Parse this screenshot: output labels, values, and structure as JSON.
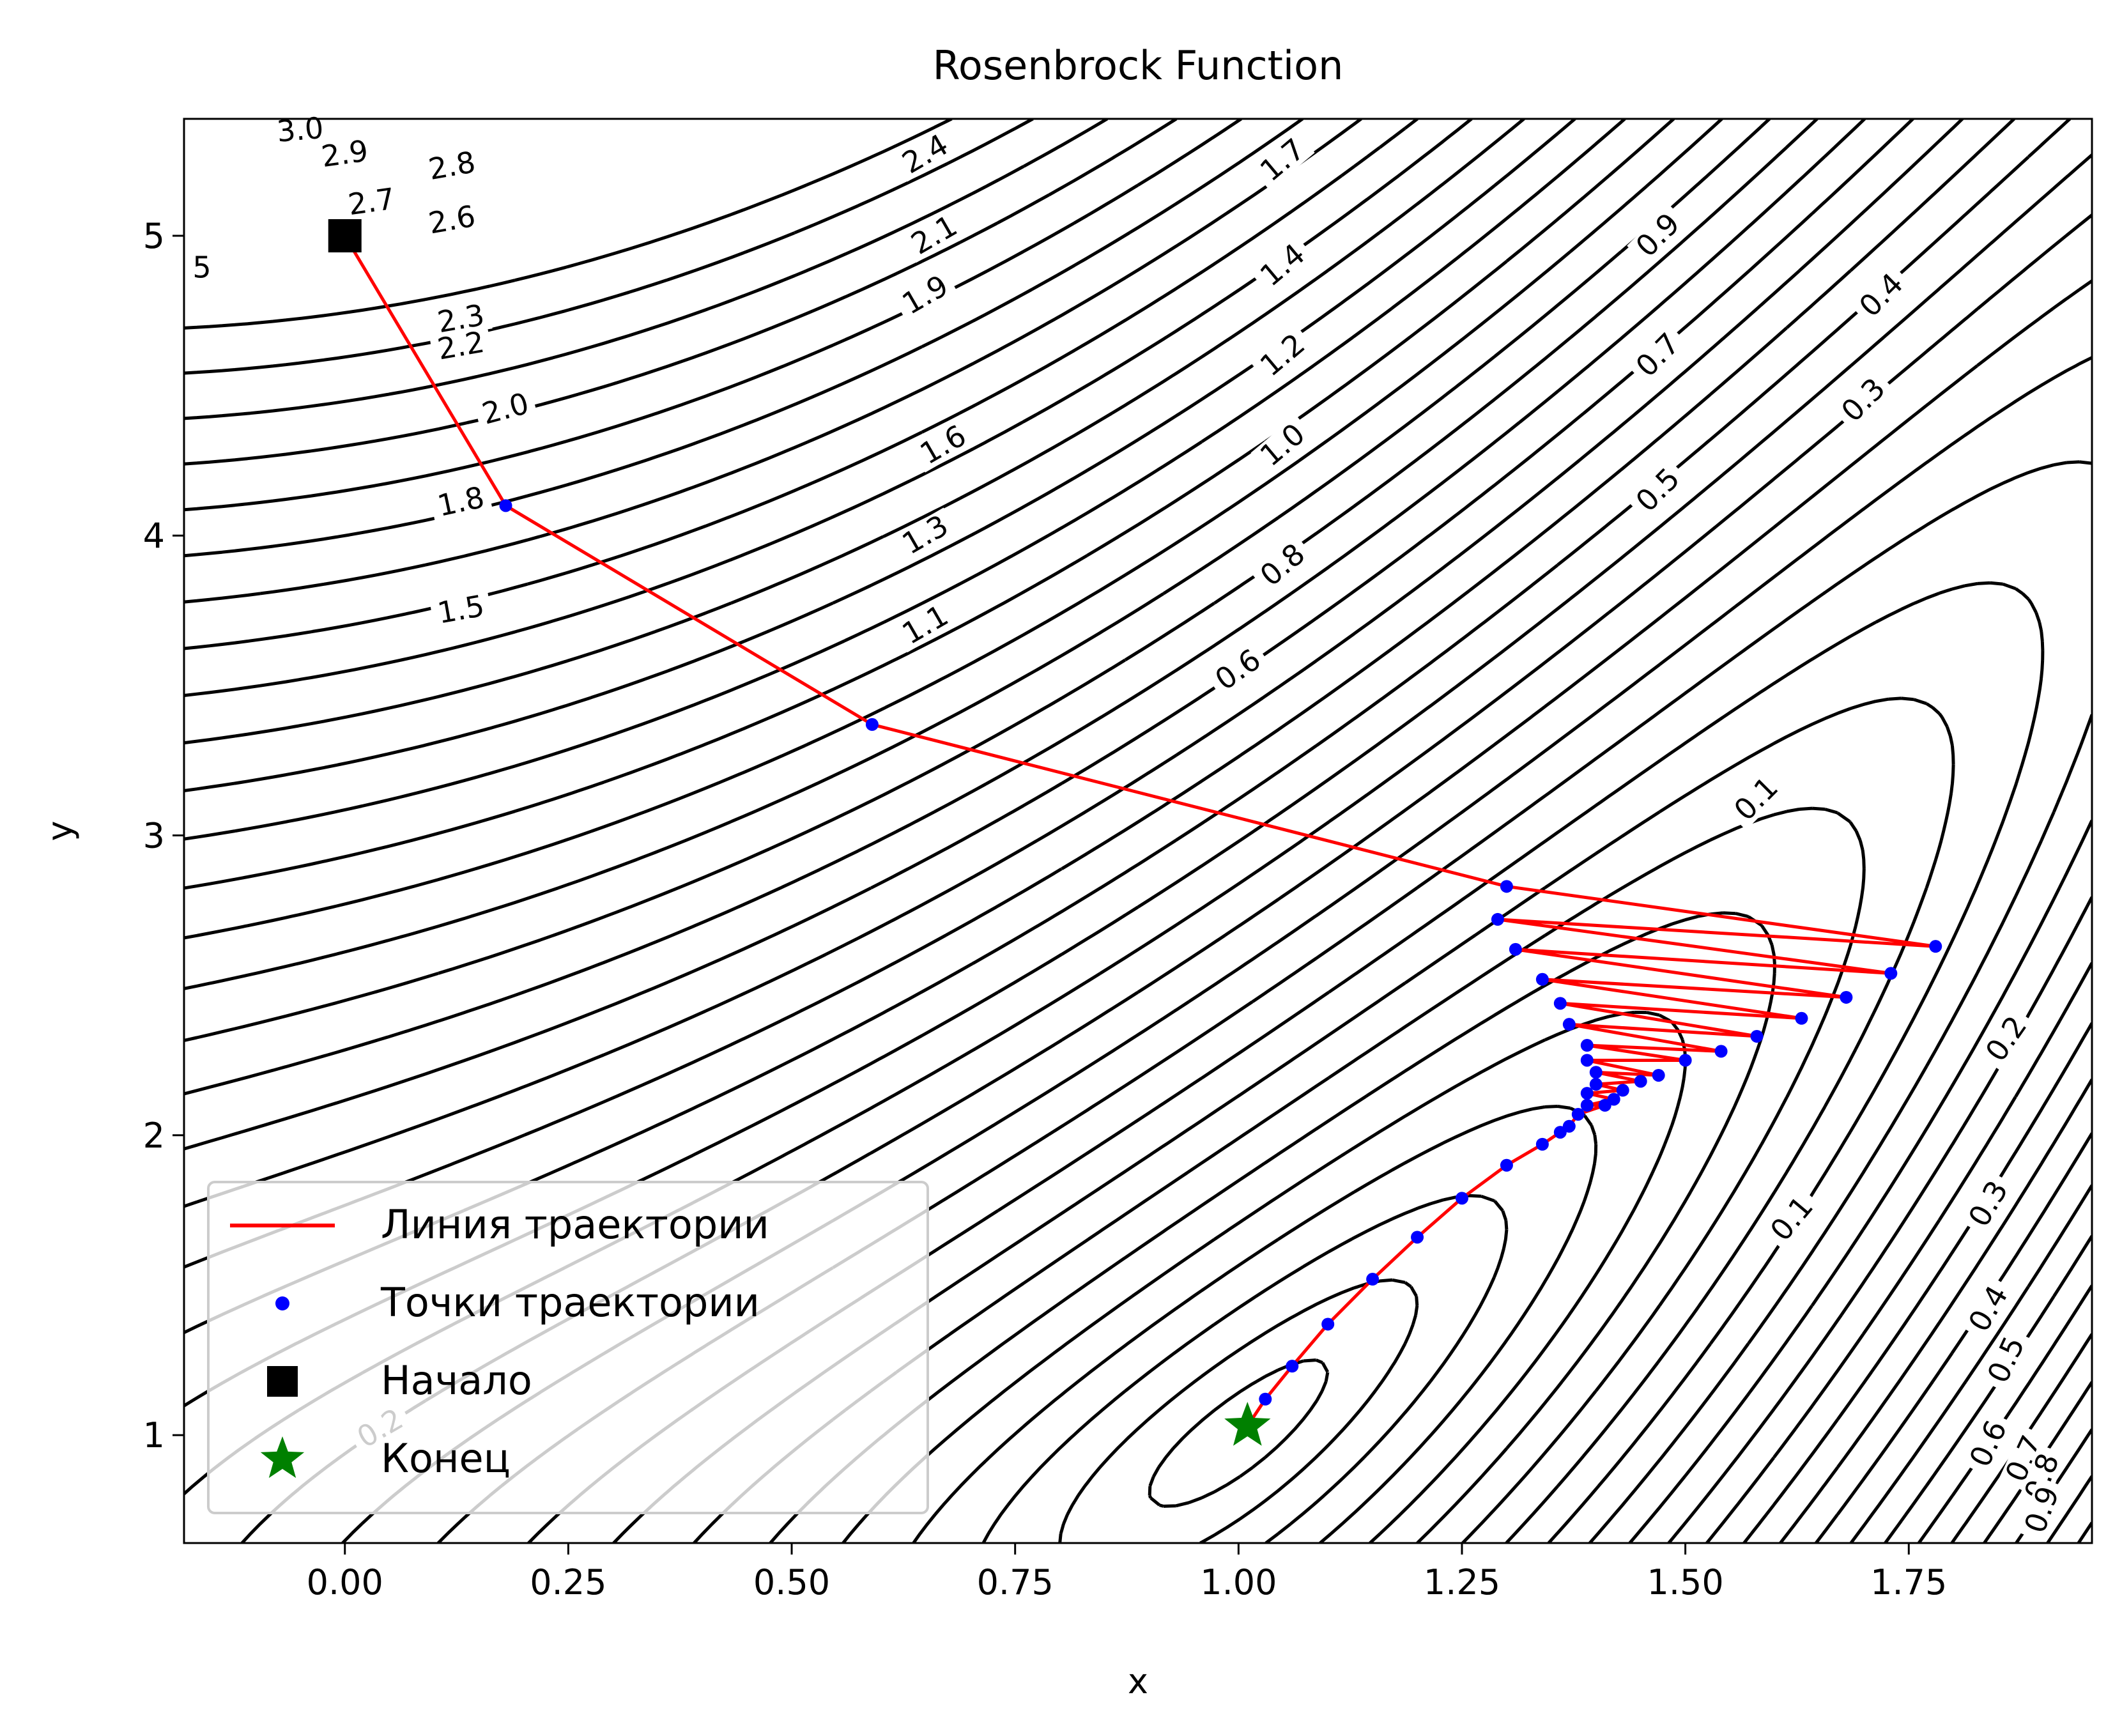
{
  "chart_data": {
    "type": "contour",
    "title": "Rosenbrock Function",
    "xlabel": "x",
    "ylabel": "y",
    "xlim": [
      -0.18,
      1.955
    ],
    "ylim": [
      0.64,
      5.39
    ],
    "x_ticks": [
      0.0,
      0.25,
      0.5,
      0.75,
      1.0,
      1.25,
      1.5,
      1.75
    ],
    "x_tick_labels": [
      "0.00",
      "0.25",
      "0.50",
      "0.75",
      "1.00",
      "1.25",
      "1.50",
      "1.75"
    ],
    "y_ticks": [
      1,
      2,
      3,
      4,
      5
    ],
    "y_tick_labels": [
      "1",
      "2",
      "3",
      "4",
      "5"
    ],
    "grid": false,
    "legend_position": "lower-left",
    "legend": [
      {
        "label": "Линия траектории",
        "marker": "line",
        "color": "#ff0000"
      },
      {
        "label": "Точки траектории",
        "marker": "dot",
        "color": "#0000ff"
      },
      {
        "label": "Начало",
        "marker": "square",
        "color": "#000000"
      },
      {
        "label": "Конец",
        "marker": "star",
        "color": "#008000"
      }
    ],
    "contour_labels": [
      {
        "text": "3.0",
        "x": -0.05,
        "y": 5.35,
        "angle": -5
      },
      {
        "text": "2.9",
        "x": 0.0,
        "y": 5.27,
        "angle": -8
      },
      {
        "text": "2.8",
        "x": 0.12,
        "y": 5.23,
        "angle": -10
      },
      {
        "text": "2.7",
        "x": 0.03,
        "y": 5.11,
        "angle": -8
      },
      {
        "text": "2.6",
        "x": 0.12,
        "y": 5.05,
        "angle": -10
      },
      {
        "text": "5",
        "x": -0.16,
        "y": 4.89,
        "angle": 0
      },
      {
        "text": "2.4",
        "x": 0.65,
        "y": 5.27,
        "angle": -30
      },
      {
        "text": "2.1",
        "x": 0.66,
        "y": 5.0,
        "angle": -30
      },
      {
        "text": "1.9",
        "x": 0.65,
        "y": 4.8,
        "angle": -30
      },
      {
        "text": "1.7",
        "x": 1.05,
        "y": 5.25,
        "angle": -40
      },
      {
        "text": "1.4",
        "x": 1.05,
        "y": 4.9,
        "angle": -40
      },
      {
        "text": "1.2",
        "x": 1.05,
        "y": 4.6,
        "angle": -40
      },
      {
        "text": "1.0",
        "x": 1.05,
        "y": 4.3,
        "angle": -40
      },
      {
        "text": "0.8",
        "x": 1.05,
        "y": 3.9,
        "angle": -40
      },
      {
        "text": "0.6",
        "x": 1.0,
        "y": 3.55,
        "angle": -35
      },
      {
        "text": "0.9",
        "x": 1.47,
        "y": 5.0,
        "angle": -45
      },
      {
        "text": "0.7",
        "x": 1.47,
        "y": 4.6,
        "angle": -45
      },
      {
        "text": "0.5",
        "x": 1.47,
        "y": 4.15,
        "angle": -45
      },
      {
        "text": "0.4",
        "x": 1.72,
        "y": 4.8,
        "angle": -45
      },
      {
        "text": "0.3",
        "x": 1.7,
        "y": 4.45,
        "angle": -45
      },
      {
        "text": "0.1",
        "x": 1.58,
        "y": 3.12,
        "angle": -45
      },
      {
        "text": "2.3",
        "x": 0.13,
        "y": 4.72,
        "angle": -10
      },
      {
        "text": "2.2",
        "x": 0.13,
        "y": 4.63,
        "angle": -10
      },
      {
        "text": "2.0",
        "x": 0.18,
        "y": 4.42,
        "angle": -15
      },
      {
        "text": "1.8",
        "x": 0.13,
        "y": 4.11,
        "angle": -12
      },
      {
        "text": "1.6",
        "x": 0.67,
        "y": 4.3,
        "angle": -30
      },
      {
        "text": "1.5",
        "x": 0.13,
        "y": 3.75,
        "angle": -10
      },
      {
        "text": "1.3",
        "x": 0.65,
        "y": 4.0,
        "angle": -30
      },
      {
        "text": "1.1",
        "x": 0.65,
        "y": 3.7,
        "angle": -30
      },
      {
        "text": "0.2",
        "x": 1.86,
        "y": 2.32,
        "angle": -55
      },
      {
        "text": "0.1",
        "x": 1.62,
        "y": 1.72,
        "angle": -50
      },
      {
        "text": "0.3",
        "x": 1.84,
        "y": 1.77,
        "angle": -60
      },
      {
        "text": "0.4",
        "x": 1.84,
        "y": 1.42,
        "angle": -60
      },
      {
        "text": "0.5",
        "x": 1.86,
        "y": 1.25,
        "angle": -65
      },
      {
        "text": "0.6",
        "x": 1.84,
        "y": 0.97,
        "angle": -65
      },
      {
        "text": "0.7",
        "x": 1.88,
        "y": 0.92,
        "angle": -65
      },
      {
        "text": "0.8",
        "x": 1.9,
        "y": 0.86,
        "angle": -70
      },
      {
        "text": "0.9",
        "x": 1.9,
        "y": 0.75,
        "angle": -70
      },
      {
        "text": "0.2",
        "x": 0.04,
        "y": 1.02,
        "angle": -30
      }
    ],
    "trajectory": [
      [
        0.0,
        5.0
      ],
      [
        0.18,
        4.1
      ],
      [
        0.59,
        3.37
      ],
      [
        1.3,
        2.83
      ],
      [
        1.78,
        2.63
      ],
      [
        1.29,
        2.72
      ],
      [
        1.73,
        2.54
      ],
      [
        1.31,
        2.62
      ],
      [
        1.68,
        2.46
      ],
      [
        1.34,
        2.52
      ],
      [
        1.63,
        2.39
      ],
      [
        1.36,
        2.44
      ],
      [
        1.58,
        2.33
      ],
      [
        1.37,
        2.37
      ],
      [
        1.54,
        2.28
      ],
      [
        1.39,
        2.3
      ],
      [
        1.5,
        2.25
      ],
      [
        1.39,
        2.25
      ],
      [
        1.47,
        2.2
      ],
      [
        1.4,
        2.21
      ],
      [
        1.45,
        2.18
      ],
      [
        1.4,
        2.17
      ],
      [
        1.43,
        2.15
      ],
      [
        1.39,
        2.14
      ],
      [
        1.42,
        2.12
      ],
      [
        1.39,
        2.1
      ],
      [
        1.41,
        2.1
      ],
      [
        1.38,
        2.07
      ],
      [
        1.37,
        2.03
      ],
      [
        1.36,
        2.01
      ],
      [
        1.34,
        1.97
      ],
      [
        1.3,
        1.9
      ],
      [
        1.25,
        1.79
      ],
      [
        1.2,
        1.66
      ],
      [
        1.15,
        1.52
      ],
      [
        1.1,
        1.37
      ],
      [
        1.06,
        1.23
      ],
      [
        1.03,
        1.12
      ],
      [
        1.01,
        1.03
      ]
    ],
    "start": [
      0.0,
      5.0
    ],
    "end": [
      1.01,
      1.03
    ]
  }
}
